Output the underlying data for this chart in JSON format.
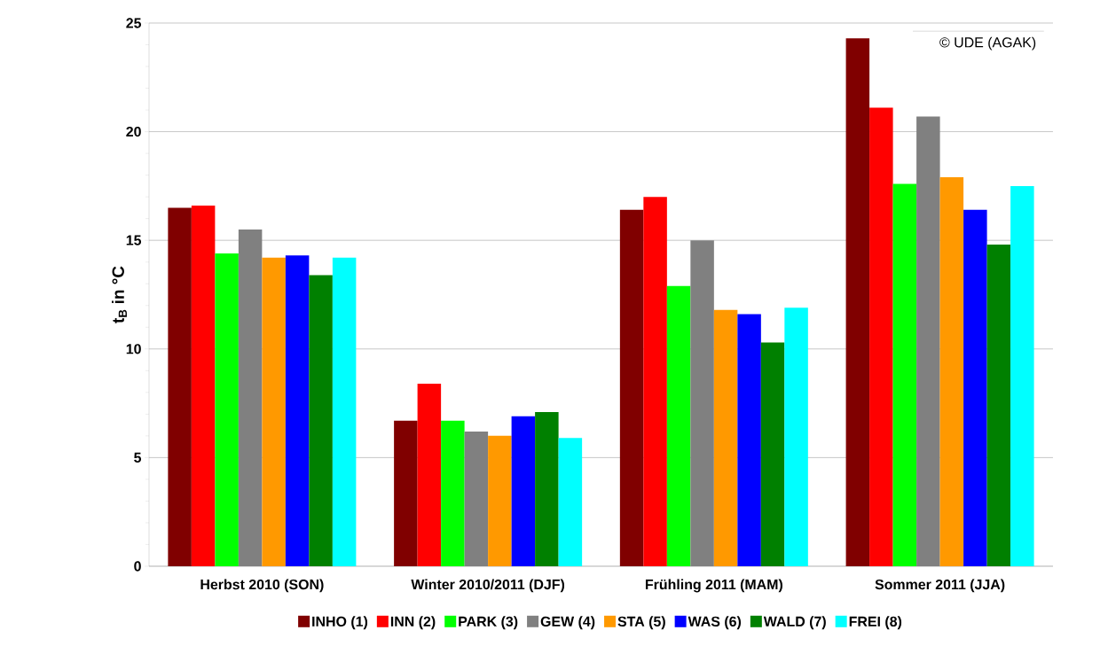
{
  "chart_data": {
    "type": "bar",
    "ylabel": "t$_{B}$ in °C",
    "categories": [
      "Herbst 2010 (SON)",
      "Winter 2010/2011 (DJF)",
      "Frühling 2011 (MAM)",
      "Sommer 2011 (JJA)"
    ],
    "series": [
      {
        "name": "INHO (1)",
        "color": "#800000",
        "values": [
          16.5,
          6.7,
          16.4,
          24.3
        ]
      },
      {
        "name": "INN (2)",
        "color": "#ff0000",
        "values": [
          16.6,
          8.4,
          17.0,
          21.1
        ]
      },
      {
        "name": "PARK (3)",
        "color": "#00ff00",
        "values": [
          14.4,
          6.7,
          12.9,
          17.6
        ]
      },
      {
        "name": "GEW (4)",
        "color": "#808080",
        "values": [
          15.5,
          6.2,
          15.0,
          20.7
        ]
      },
      {
        "name": "STA (5)",
        "color": "#ff9900",
        "values": [
          14.2,
          6.0,
          11.8,
          17.9
        ]
      },
      {
        "name": "WAS (6)",
        "color": "#0000ff",
        "values": [
          14.3,
          6.9,
          11.6,
          16.4
        ]
      },
      {
        "name": "WALD (7)",
        "color": "#008000",
        "values": [
          13.4,
          7.1,
          10.3,
          14.8
        ]
      },
      {
        "name": "FREI (8)",
        "color": "#00ffff",
        "values": [
          14.2,
          5.9,
          11.9,
          17.5
        ]
      }
    ],
    "ylim": [
      0,
      25
    ],
    "yticks": [
      0,
      5,
      10,
      15,
      20,
      25
    ],
    "grid": "y",
    "legend": "bottom",
    "annotations": [
      "© UDE (AGAK)"
    ]
  }
}
